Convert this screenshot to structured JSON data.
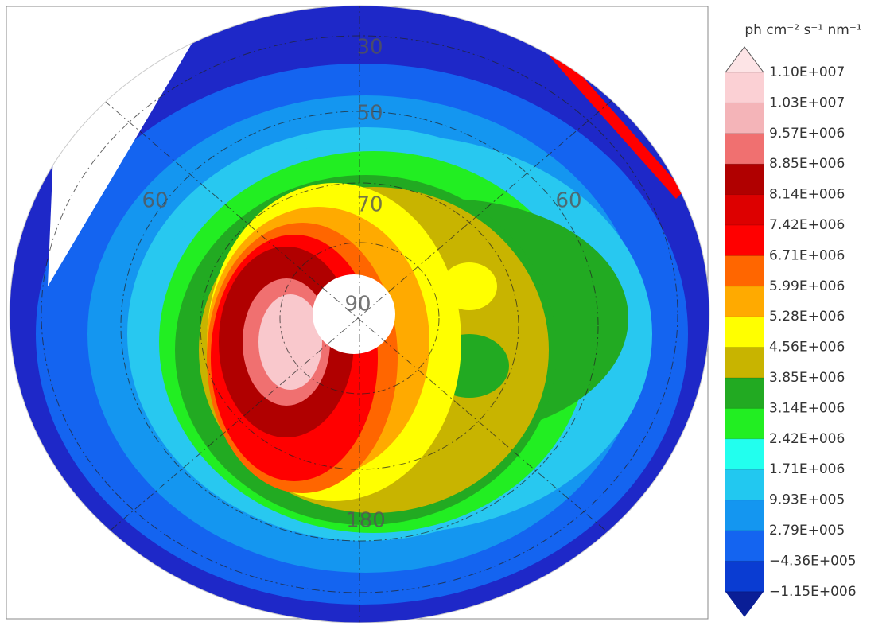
{
  "map_labels": [
    "30",
    "50",
    "60",
    "70",
    "90",
    "180",
    "60"
  ],
  "colorbar": {
    "unit": "ph cm⁻² s⁻¹ nm⁻¹",
    "levels": [
      {
        "value": 11000000,
        "label": "1.10E+007"
      },
      {
        "value": 10300000,
        "label": "1.03E+007"
      },
      {
        "value": 9570000,
        "label": "9.57E+006"
      },
      {
        "value": 8850000,
        "label": "8.85E+006"
      },
      {
        "value": 8140000,
        "label": "8.14E+006"
      },
      {
        "value": 7420000,
        "label": "7.42E+006"
      },
      {
        "value": 6710000,
        "label": "6.71E+006"
      },
      {
        "value": 5990000,
        "label": "5.99E+006"
      },
      {
        "value": 5280000,
        "label": "5.28E+006"
      },
      {
        "value": 4560000,
        "label": "4.56E+006"
      },
      {
        "value": 3850000,
        "label": "3.85E+006"
      },
      {
        "value": 3140000,
        "label": "3.14E+006"
      },
      {
        "value": 2420000,
        "label": "2.42E+006"
      },
      {
        "value": 1710000,
        "label": "1.71E+006"
      },
      {
        "value": 993000,
        "label": "9.93E+005"
      },
      {
        "value": 279000,
        "label": "2.79E+005"
      },
      {
        "value": -436000,
        "label": "−4.36E+005"
      },
      {
        "value": -1150000,
        "label": "−1.15E+006"
      }
    ],
    "colors": [
      "#fde4e6",
      "#fbd0d4",
      "#f4b4b8",
      "#f07070",
      "#b00000",
      "#dd0000",
      "#ff0000",
      "#ff6600",
      "#ffaa00",
      "#ffff00",
      "#c8b400",
      "#22aa22",
      "#22ee22",
      "#22ffee",
      "#22c8f0",
      "#1496f0",
      "#1464f0",
      "#0a3cd2",
      "#0a1e96"
    ]
  }
}
